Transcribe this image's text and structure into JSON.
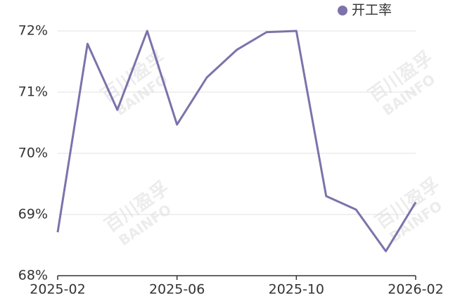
{
  "chart_data": {
    "type": "line",
    "categories": [
      "2025-02",
      null,
      null,
      null,
      "2025-06",
      null,
      null,
      null,
      "2025-10",
      null,
      null,
      null,
      "2026-02"
    ],
    "series": [
      {
        "name": "开工率",
        "color": "#7d72aa",
        "values": [
          68.71,
          71.79,
          70.71,
          72.0,
          70.47,
          71.24,
          71.69,
          71.98,
          72.0,
          69.3,
          69.08,
          68.4,
          69.2
        ]
      }
    ],
    "ylim": [
      68,
      72
    ],
    "yticks": [
      {
        "value": 68,
        "label": "68%"
      },
      {
        "value": 69,
        "label": "69%"
      },
      {
        "value": 70,
        "label": "70%"
      },
      {
        "value": 71,
        "label": "71%"
      },
      {
        "value": 72,
        "label": "72%"
      }
    ],
    "grid": true,
    "legend": "top-right",
    "watermark": [
      "百川盈孚",
      "BAINFO"
    ]
  }
}
